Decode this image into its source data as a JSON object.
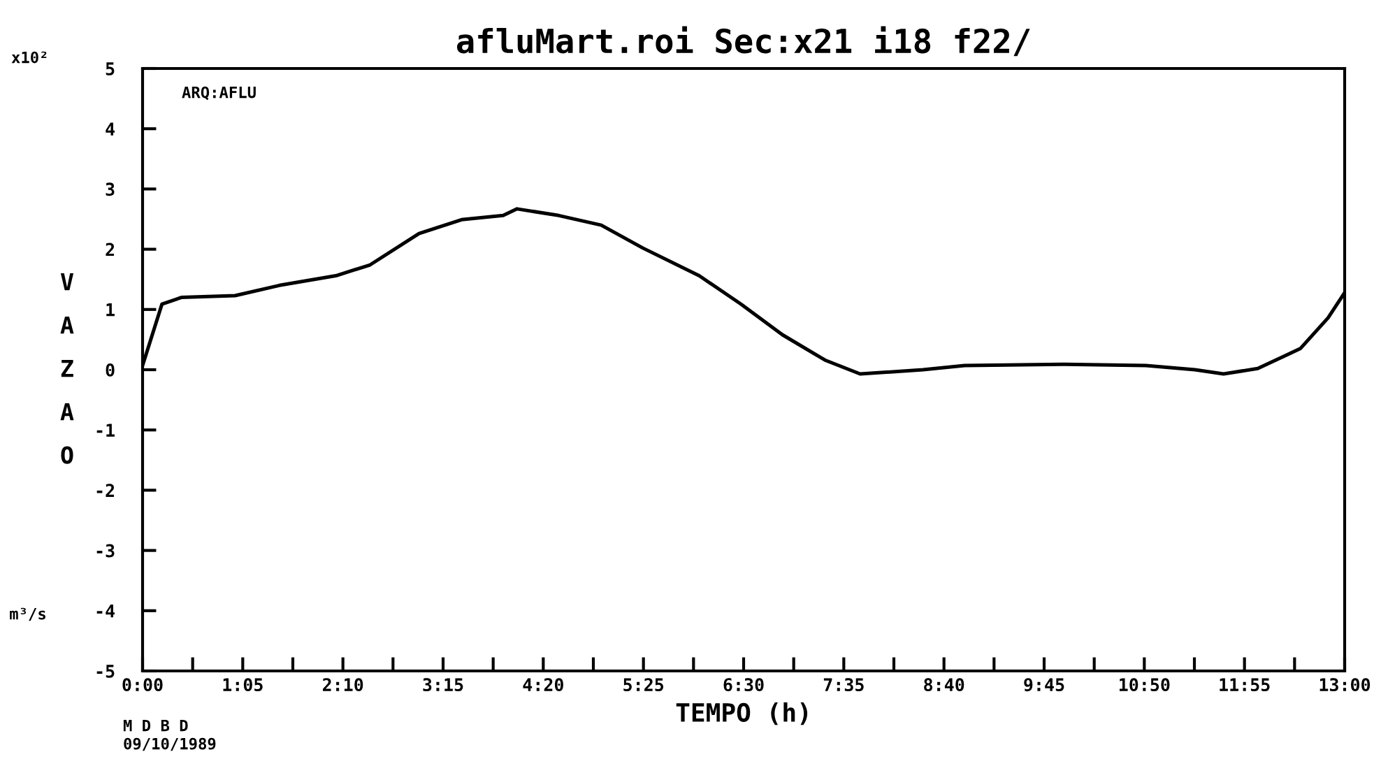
{
  "chart_data": {
    "type": "line",
    "title": "afluMart.roi Sec:x21 i18 f22/",
    "xlabel": "TEMPO (h)",
    "ylabel": "VAZAO",
    "annotations": [
      "x10²",
      "m³/s",
      "ARQ:AFLU",
      "M D B D",
      "09/10/1989"
    ],
    "x": [
      0,
      0.21,
      0.42,
      1.0,
      1.48,
      2.09,
      2.46,
      2.99,
      3.45,
      3.9,
      4.05,
      4.5,
      4.96,
      5.41,
      6.02,
      6.47,
      6.92,
      7.38,
      7.76,
      8.44,
      8.89,
      9.95,
      10.85,
      11.38,
      11.69,
      12.06,
      12.52,
      12.82,
      13.0
    ],
    "series": [
      {
        "color": "#000000",
        "values": [
          0.07,
          1.09,
          1.2,
          1.23,
          1.4,
          1.56,
          1.74,
          2.26,
          2.49,
          2.56,
          2.67,
          2.56,
          2.4,
          2.02,
          1.56,
          1.09,
          0.58,
          0.16,
          -0.07,
          0,
          0.07,
          0.09,
          0.07,
          0,
          -0.07,
          0.02,
          0.35,
          0.86,
          1.28
        ]
      }
    ],
    "xlim": [
      0,
      13
    ],
    "ylim": [
      -5,
      5
    ],
    "xticks": [
      {
        "value": 0,
        "label": "0:00"
      },
      {
        "value": 0.5417,
        "label": null
      },
      {
        "value": 1.0833,
        "label": "1:05"
      },
      {
        "value": 1.625,
        "label": null
      },
      {
        "value": 2.1667,
        "label": "2:10"
      },
      {
        "value": 2.7083,
        "label": null
      },
      {
        "value": 3.25,
        "label": "3:15"
      },
      {
        "value": 3.7917,
        "label": null
      },
      {
        "value": 4.3333,
        "label": "4:20"
      },
      {
        "value": 4.875,
        "label": null
      },
      {
        "value": 5.4167,
        "label": "5:25"
      },
      {
        "value": 5.9583,
        "label": null
      },
      {
        "value": 6.5,
        "label": "6:30"
      },
      {
        "value": 7.0417,
        "label": null
      },
      {
        "value": 7.5833,
        "label": "7:35"
      },
      {
        "value": 8.125,
        "label": null
      },
      {
        "value": 8.6667,
        "label": "8:40"
      },
      {
        "value": 9.2083,
        "label": null
      },
      {
        "value": 9.75,
        "label": "9:45"
      },
      {
        "value": 10.2917,
        "label": null
      },
      {
        "value": 10.8333,
        "label": "10:50"
      },
      {
        "value": 11.375,
        "label": null
      },
      {
        "value": 11.9167,
        "label": "11:55"
      },
      {
        "value": 12.4583,
        "label": null
      },
      {
        "value": 13,
        "label": "13:00"
      }
    ],
    "yticks": [
      -5,
      -4,
      -3,
      -2,
      -1,
      0,
      1,
      2,
      3,
      4,
      5
    ],
    "grid": false,
    "marker": "none",
    "line_style": "solid"
  }
}
